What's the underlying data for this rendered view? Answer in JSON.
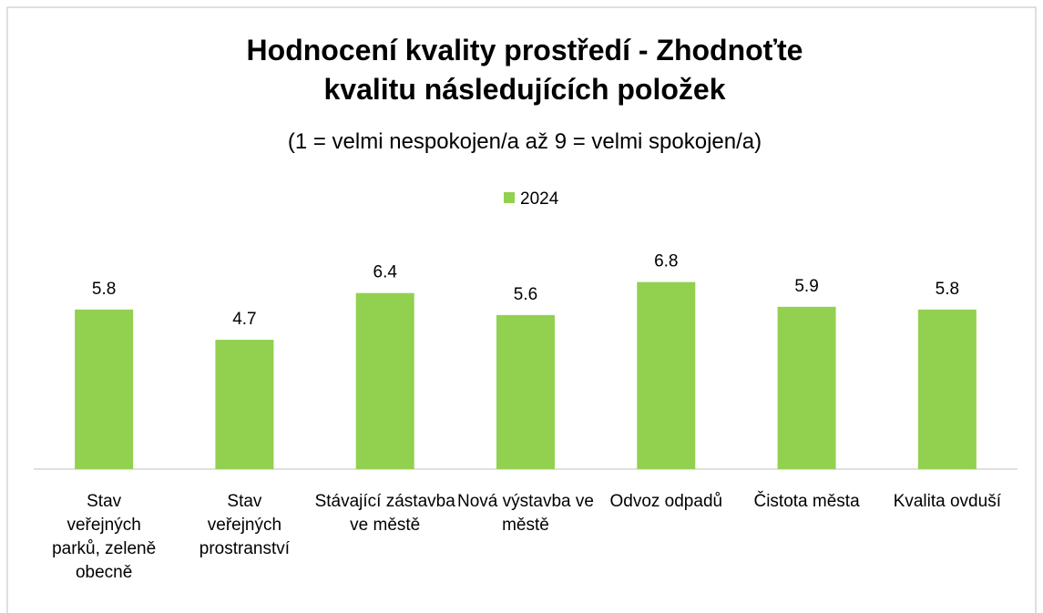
{
  "chart_data": {
    "type": "bar",
    "title": "Hodnocení kvality prostředí - Zhodnoťte kvalitu následujících položek",
    "subtitle": "(1 = velmi nespokojen/a až 9 = velmi spokojen/a)",
    "categories": [
      "Stav veřejných parků, zeleně obecně",
      "Stav veřejných prostranství",
      "Stávající zástavba ve městě",
      "Nová výstavba ve městě",
      "Odvoz odpadů",
      "Čistota města",
      "Kvalita ovduší"
    ],
    "series": [
      {
        "name": "2024",
        "color": "#92d050",
        "values": [
          5.8,
          4.7,
          6.4,
          5.6,
          6.8,
          5.9,
          5.8
        ]
      }
    ],
    "legend": "top"
  }
}
